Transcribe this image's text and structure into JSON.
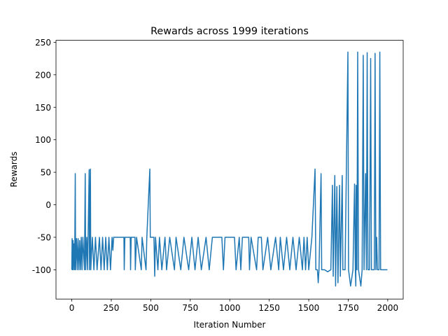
{
  "chart_data": {
    "type": "line",
    "title": "Rewards across 1999 iterations",
    "x_label": "Iteration Number",
    "y_label": "Rewards",
    "x": [
      0,
      2,
      4,
      8,
      10,
      15,
      18,
      22,
      24,
      30,
      35,
      40,
      45,
      50,
      55,
      60,
      65,
      70,
      80,
      85,
      88,
      95,
      100,
      110,
      112,
      118,
      120,
      130,
      140,
      150,
      160,
      175,
      185,
      195,
      205,
      215,
      225,
      235,
      245,
      255,
      260,
      265,
      330,
      332,
      336,
      370,
      372,
      376,
      400,
      402,
      410,
      440,
      445,
      470,
      475,
      494,
      497,
      520,
      525,
      530,
      545,
      555,
      570,
      590,
      600,
      620,
      650,
      660,
      690,
      710,
      740,
      760,
      780,
      800,
      820,
      850,
      870,
      890,
      950,
      960,
      970,
      1030,
      1040,
      1060,
      1070,
      1080,
      1120,
      1125,
      1135,
      1170,
      1180,
      1200,
      1210,
      1240,
      1260,
      1290,
      1310,
      1320,
      1340,
      1360,
      1380,
      1400,
      1420,
      1440,
      1460,
      1470,
      1480,
      1490,
      1500,
      1520,
      1540,
      1545,
      1555,
      1560,
      1565,
      1578,
      1582,
      1600,
      1620,
      1640,
      1650,
      1655,
      1665,
      1670,
      1678,
      1685,
      1695,
      1700,
      1712,
      1716,
      1730,
      1748,
      1752,
      1765,
      1780,
      1790,
      1795,
      1798,
      1800,
      1805,
      1810,
      1815,
      1830,
      1838,
      1845,
      1850,
      1860,
      1865,
      1870,
      1875,
      1885,
      1892,
      1897,
      1915,
      1920,
      1925,
      1930,
      1935,
      1945,
      1950,
      1955,
      1998
    ],
    "series": [
      {
        "name": "Rewards",
        "color": "#1f77b4",
        "values": [
          -100,
          -52,
          -100,
          -55,
          -100,
          -60,
          -100,
          48,
          -100,
          -52,
          -100,
          -52,
          -100,
          -55,
          -100,
          -50,
          -100,
          -50,
          -100,
          48,
          -100,
          -50,
          -100,
          54,
          -100,
          55,
          -100,
          -50,
          -100,
          -50,
          -100,
          -50,
          -100,
          -50,
          -100,
          -50,
          -100,
          -50,
          -100,
          -50,
          -70,
          -50,
          -50,
          -100,
          -50,
          -50,
          -100,
          -50,
          -50,
          -100,
          -50,
          -100,
          -50,
          -100,
          -50,
          55,
          -50,
          -50,
          -110,
          -50,
          -100,
          -50,
          -100,
          -50,
          -100,
          -50,
          -100,
          -50,
          -100,
          -50,
          -100,
          -50,
          -100,
          -50,
          -100,
          -50,
          -100,
          -50,
          -50,
          -100,
          -50,
          -50,
          -100,
          -50,
          -100,
          -50,
          -50,
          -100,
          -50,
          -100,
          -50,
          -50,
          -100,
          -50,
          -100,
          -50,
          -100,
          -50,
          -100,
          -50,
          -100,
          -50,
          -100,
          -50,
          -100,
          -50,
          -100,
          -50,
          -100,
          -50,
          55,
          -100,
          -100,
          -120,
          -100,
          48,
          -100,
          -100,
          -103,
          -100,
          30,
          -110,
          45,
          -125,
          28,
          -120,
          30,
          -110,
          45,
          -100,
          -100,
          235,
          -100,
          -125,
          -100,
          32,
          -100,
          -125,
          30,
          -100,
          235,
          -100,
          -125,
          -100,
          230,
          -100,
          48,
          -100,
          234,
          -100,
          -100,
          225,
          -100,
          -100,
          233,
          -100,
          -50,
          -100,
          -100,
          235,
          -100,
          -100
        ]
      }
    ],
    "xlim": [
      -100,
      2098
    ],
    "ylim": [
      -145,
      253
    ],
    "xticks": [
      0,
      250,
      500,
      750,
      1000,
      1250,
      1500,
      1750,
      2000
    ],
    "yticks": [
      -100,
      -50,
      0,
      50,
      100,
      150,
      200,
      250
    ]
  }
}
